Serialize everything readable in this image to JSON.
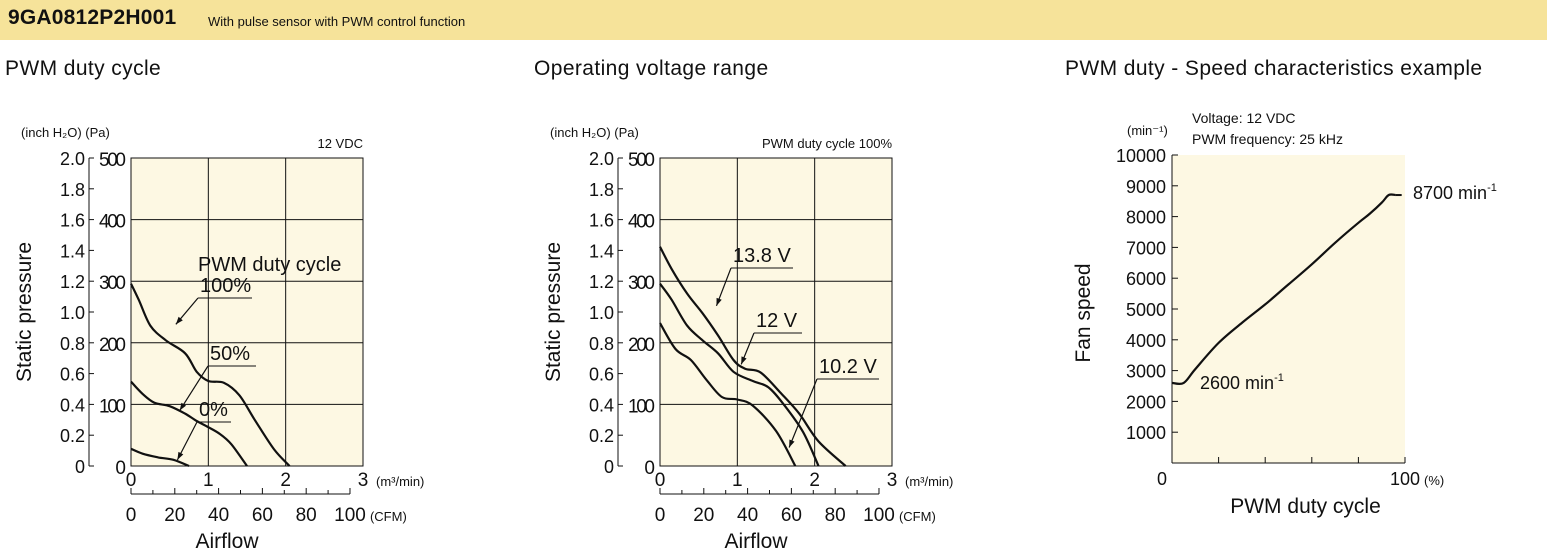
{
  "header": {
    "model": "9GA0812P2H001",
    "subtitle": "With pulse sensor with PWM control function"
  },
  "colors": {
    "header_bg": "#f6e39a",
    "plot_bg": "#fdf8e3"
  },
  "chart_data": [
    {
      "type": "line",
      "title": "PWM duty cycle",
      "xlabel": "Airflow",
      "ylabel": "Static pressure",
      "x_unit": "(m³/min)",
      "x2_unit": "(CFM)",
      "y_unit_inch": "(inch H₂O)",
      "y_unit_pa": "(Pa)",
      "condition": "12 VDC",
      "legend_title": "PWM duty cycle",
      "xlim": [
        0,
        3
      ],
      "ylim": [
        0,
        500
      ],
      "x_ticks": [
        "0",
        "1",
        "2",
        "3"
      ],
      "x2_ticks": [
        "0",
        "20",
        "40",
        "60",
        "80",
        "100"
      ],
      "y_ticks_pa": [
        "0",
        "100",
        "200",
        "300",
        "400",
        "500"
      ],
      "y_ticks_inch": [
        "0",
        "0.2",
        "0.4",
        "0.6",
        "0.8",
        "1.0",
        "1.2",
        "1.4",
        "1.6",
        "1.8",
        "2.0"
      ],
      "series": [
        {
          "name": "100%",
          "x": [
            0,
            0.1,
            0.25,
            0.45,
            0.7,
            0.85,
            1.0,
            1.2,
            1.4,
            1.6,
            1.85,
            2.05
          ],
          "y": [
            296,
            270,
            228,
            204,
            183,
            153,
            138,
            135,
            115,
            75,
            27,
            0
          ]
        },
        {
          "name": "50%",
          "x": [
            0,
            0.15,
            0.3,
            0.5,
            0.7,
            0.85,
            1.0,
            1.15,
            1.3,
            1.5
          ],
          "y": [
            137,
            117,
            103,
            97,
            85,
            73,
            63,
            52,
            35,
            0
          ]
        },
        {
          "name": "0%",
          "x": [
            0,
            0.15,
            0.35,
            0.55,
            0.75
          ],
          "y": [
            28,
            20,
            14,
            10,
            0
          ]
        }
      ]
    },
    {
      "type": "line",
      "title": "Operating voltage range",
      "xlabel": "Airflow",
      "ylabel": "Static pressure",
      "x_unit": "(m³/min)",
      "x2_unit": "(CFM)",
      "y_unit_inch": "(inch H₂O)",
      "y_unit_pa": "(Pa)",
      "condition": "PWM duty cycle 100%",
      "xlim": [
        0,
        3
      ],
      "ylim": [
        0,
        500
      ],
      "x_ticks": [
        "0",
        "1",
        "2",
        "3"
      ],
      "x2_ticks": [
        "0",
        "20",
        "40",
        "60",
        "80",
        "100"
      ],
      "y_ticks_pa": [
        "0",
        "100",
        "200",
        "300",
        "400",
        "500"
      ],
      "y_ticks_inch": [
        "0",
        "0.2",
        "0.4",
        "0.6",
        "0.8",
        "1.0",
        "1.2",
        "1.4",
        "1.6",
        "1.8",
        "2.0"
      ],
      "series": [
        {
          "name": "13.8 V",
          "x": [
            0,
            0.15,
            0.35,
            0.55,
            0.75,
            0.95,
            1.1,
            1.3,
            1.55,
            1.8,
            2.05,
            2.4
          ],
          "y": [
            356,
            320,
            280,
            248,
            212,
            172,
            158,
            152,
            120,
            85,
            40,
            0
          ]
        },
        {
          "name": "12 V",
          "x": [
            0,
            0.15,
            0.35,
            0.55,
            0.75,
            0.95,
            1.2,
            1.4,
            1.6,
            1.85,
            2.05
          ],
          "y": [
            296,
            270,
            228,
            204,
            183,
            153,
            138,
            128,
            100,
            55,
            0
          ]
        },
        {
          "name": "10.2 V",
          "x": [
            0,
            0.2,
            0.4,
            0.6,
            0.8,
            1.0,
            1.2,
            1.5,
            1.75
          ],
          "y": [
            232,
            190,
            172,
            140,
            112,
            108,
            98,
            57,
            0
          ]
        }
      ]
    },
    {
      "type": "line",
      "title": "PWM duty - Speed characteristics example",
      "xlabel": "PWM duty cycle",
      "ylabel": "Fan speed",
      "x_unit": "(%)",
      "y_unit": "(min⁻¹)",
      "conditions": [
        "Voltage: 12 VDC",
        "PWM frequency: 25 kHz"
      ],
      "xlim": [
        0,
        100
      ],
      "ylim": [
        0,
        10000
      ],
      "x_tick_labels": [
        "0",
        "100"
      ],
      "y_ticks": [
        "1000",
        "2000",
        "3000",
        "4000",
        "5000",
        "6000",
        "7000",
        "8000",
        "9000",
        "10000"
      ],
      "series": [
        {
          "x": [
            0,
            5,
            10,
            20,
            30,
            40,
            50,
            60,
            70,
            80,
            85,
            90,
            93,
            96
          ],
          "y": [
            2600,
            2600,
            3050,
            3900,
            4550,
            5150,
            5800,
            6450,
            7150,
            7800,
            8100,
            8450,
            8700,
            8700
          ]
        }
      ],
      "annotations": [
        {
          "base": "2600 min",
          "sup": "-1"
        },
        {
          "base": "8700 min",
          "sup": "-1"
        }
      ]
    }
  ]
}
